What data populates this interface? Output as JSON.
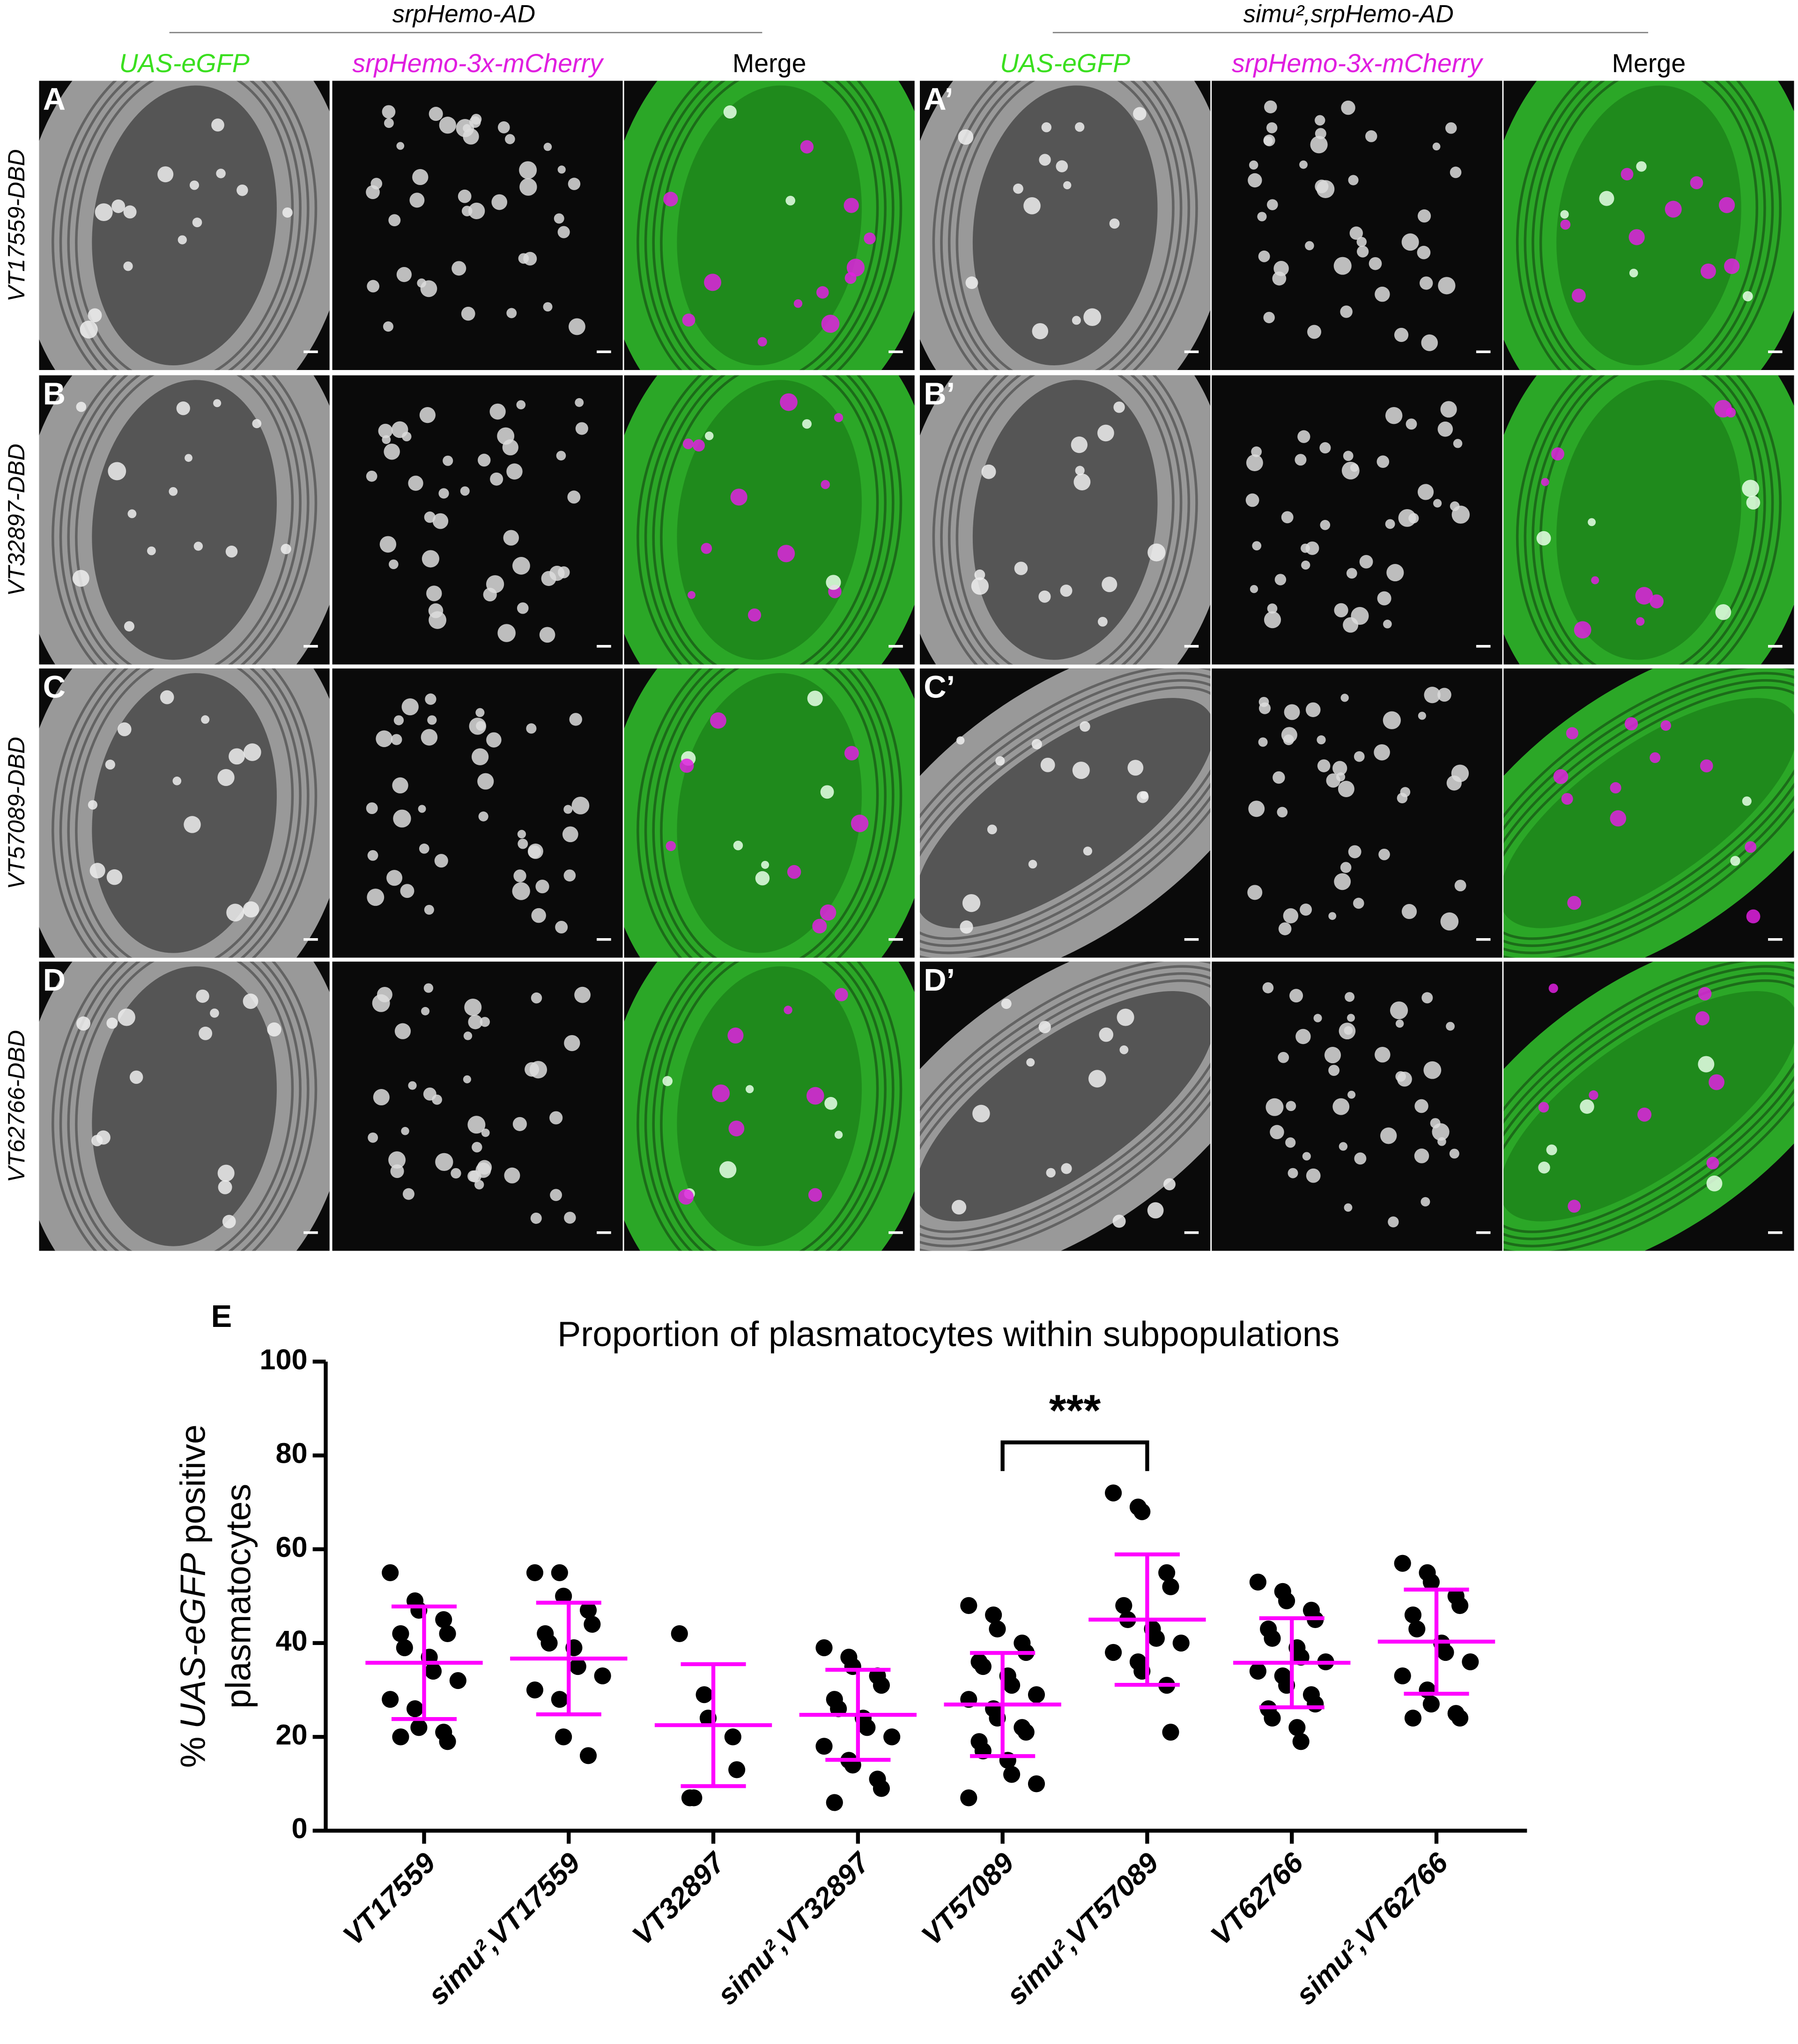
{
  "panels": {
    "groups": [
      "srpHemo-AD",
      "simu²,srpHemo-AD"
    ],
    "channels": [
      "UAS-eGFP",
      "srpHemo-3x-mCherry",
      "Merge"
    ],
    "rows": [
      {
        "label": "VT17559-DBD",
        "letters": [
          "A",
          "A’"
        ]
      },
      {
        "label": "VT32897-DBD",
        "letters": [
          "B",
          "B’"
        ]
      },
      {
        "label": "VT57089-DBD",
        "letters": [
          "C",
          "C’"
        ]
      },
      {
        "label": "VT62766-DBD",
        "letters": [
          "D",
          "D’"
        ]
      }
    ]
  },
  "chart_data": {
    "type": "dot",
    "panel_label": "E",
    "title": "Proportion of plasmatocytes within subpopulations",
    "ylabel": [
      "%",
      "UAS-eGFP",
      "positive",
      "plasmatocytes"
    ],
    "categories": [
      "VT17559",
      "simu²,VT17559",
      "VT32897",
      "simu²,VT32897",
      "VT57089",
      "simu²,VT57089",
      "VT62766",
      "simu²,VT62766"
    ],
    "points": [
      [
        55,
        49,
        47,
        45,
        42,
        42,
        39,
        37,
        34,
        32,
        28,
        26,
        22,
        21,
        19,
        20
      ],
      [
        55,
        55,
        50,
        47,
        44,
        42,
        40,
        39,
        35,
        33,
        30,
        28,
        20,
        16
      ],
      [
        42,
        29,
        24,
        20,
        13,
        7,
        7
      ],
      [
        39,
        37,
        35,
        33,
        31,
        28,
        26,
        24,
        22,
        20,
        18,
        15,
        14,
        11,
        9,
        6
      ],
      [
        48,
        46,
        43,
        40,
        38,
        36,
        35,
        33,
        31,
        29,
        28,
        26,
        24,
        22,
        21,
        19,
        17,
        15,
        12,
        10,
        7
      ],
      [
        72,
        69,
        68,
        55,
        52,
        48,
        45,
        43,
        41,
        40,
        38,
        36,
        34,
        31,
        21
      ],
      [
        53,
        51,
        49,
        47,
        45,
        43,
        41,
        39,
        37,
        36,
        34,
        33,
        31,
        29,
        27,
        26,
        24,
        22,
        19
      ],
      [
        57,
        55,
        53,
        50,
        48,
        46,
        43,
        40,
        38,
        36,
        33,
        30,
        27,
        25,
        24,
        24
      ]
    ],
    "mean": [
      35.8,
      36.7,
      22.5,
      24.7,
      26.9,
      45.0,
      35.8,
      40.3
    ],
    "sd": [
      12.0,
      11.9,
      13.0,
      9.6,
      11.0,
      13.9,
      9.5,
      11.1
    ],
    "color": "#000000",
    "summary_color": "#ff00ff",
    "ylim": [
      0,
      100
    ],
    "yticks": [
      0,
      20,
      40,
      60,
      80,
      100
    ],
    "annotations": [
      {
        "text": "***",
        "between": [
          4,
          5
        ]
      }
    ]
  }
}
